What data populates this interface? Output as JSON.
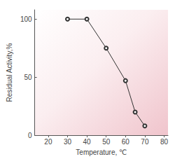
{
  "chart_data": {
    "type": "line",
    "x_label": "Temperature, ℃",
    "y_label": "Residual Activity,%",
    "x": [
      30,
      40,
      50,
      60,
      65,
      70
    ],
    "values": [
      100,
      100,
      75,
      47,
      20,
      8
    ],
    "color": "#333333",
    "marker": "circle_open",
    "line_style": "solid",
    "xlim": [
      13,
      82
    ],
    "xticks": [
      20,
      30,
      40,
      50,
      60,
      70,
      80
    ],
    "ylim": [
      0,
      108
    ],
    "yticks": [
      0,
      50,
      100
    ],
    "grid": false
  }
}
